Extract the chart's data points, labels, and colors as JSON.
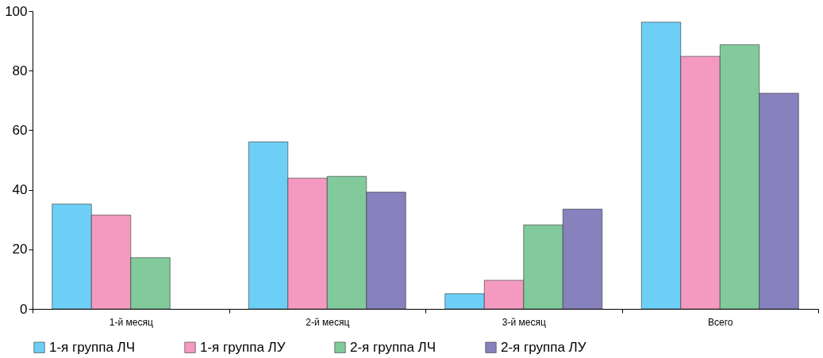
{
  "chart_data": {
    "type": "bar",
    "categories": [
      "1-й месяц",
      "2-й месяц",
      "3-й месяц",
      "Всего"
    ],
    "series": [
      {
        "name": "1-я группа ЛЧ",
        "color": "#6dcff6",
        "values": [
          35.2,
          56.1,
          5.1,
          96.3
        ]
      },
      {
        "name": "1-я группа ЛУ",
        "color": "#f49ac1",
        "values": [
          31.5,
          43.9,
          9.6,
          84.8
        ]
      },
      {
        "name": "2-я группа ЛЧ",
        "color": "#82ca9c",
        "values": [
          17.2,
          44.5,
          28.2,
          88.7
        ]
      },
      {
        "name": "2-я группа ЛУ",
        "color": "#8781bd",
        "values": [
          null,
          39.2,
          33.5,
          72.4
        ]
      }
    ],
    "ylim": [
      0,
      100
    ],
    "yticks": [
      0,
      20,
      40,
      60,
      80,
      100
    ],
    "grid": false,
    "legend": "bottom"
  }
}
